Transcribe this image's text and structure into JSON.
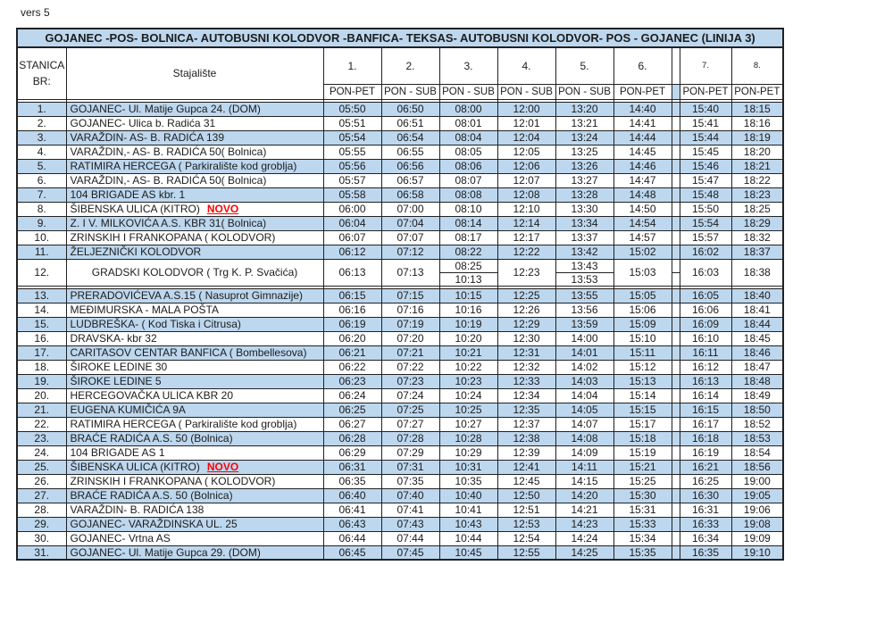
{
  "version_label": "vers 5",
  "title": "GOJANEC -POS- BOLNICA- AUTOBUSNI KOLODVOR -BANFICA- TEKSAS- AUTOBUSNI KOLODVOR- POS - GOJANEC (LINIJA 3)",
  "header": {
    "station_col_line1": "STANICA",
    "station_col_line2": "BR:",
    "stop_col": "Stajalište",
    "trips": [
      {
        "num": "1.",
        "days": "PON-PET"
      },
      {
        "num": "2.",
        "days": "PON - SUB"
      },
      {
        "num": "3.",
        "days": "PON - SUB"
      },
      {
        "num": "4.",
        "days": "PON - SUB"
      },
      {
        "num": "5.",
        "days": "PON - SUB"
      },
      {
        "num": "6.",
        "days": "PON-PET"
      },
      {
        "num": "7.",
        "days": "PON-PET"
      },
      {
        "num": "8.",
        "days": "PON-PET"
      }
    ]
  },
  "novo_label": "NOVO",
  "colors": {
    "stripe": "#bdd7ee",
    "novo": "#ff0000",
    "border": "#212121"
  },
  "rows": [
    {
      "br": "1.",
      "stop": "GOJANEC- Ul. Matije Gupca 24. (DOM)",
      "times": [
        "05:50",
        "06:50",
        "08:00",
        "12:00",
        "13:20",
        "14:40",
        "15:40",
        "18:15"
      ]
    },
    {
      "br": "2.",
      "stop": "GOJANEC- Ulica b. Radića 31",
      "times": [
        "05:51",
        "06:51",
        "08:01",
        "12:01",
        "13:21",
        "14:41",
        "15:41",
        "18:16"
      ]
    },
    {
      "br": "3.",
      "stop": "VARAŽDIN- AS- B. RADIĆA 139",
      "times": [
        "05:54",
        "06:54",
        "08:04",
        "12:04",
        "13:24",
        "14:44",
        "15:44",
        "18:19"
      ]
    },
    {
      "br": "4.",
      "stop": "VARAŽDIN,- AS- B. RADIĆA  50( Bolnica)",
      "times": [
        "05:55",
        "06:55",
        "08:05",
        "12:05",
        "13:25",
        "14:45",
        "15:45",
        "18:20"
      ]
    },
    {
      "br": "5.",
      "stop": "RATIMIRA HERCEGA ( Parkiralište kod groblja)",
      "times": [
        "05:56",
        "06:56",
        "08:06",
        "12:06",
        "13:26",
        "14:46",
        "15:46",
        "18:21"
      ]
    },
    {
      "br": "6.",
      "stop": "VARAŽDIN,- AS- B. RADIĆA  50( Bolnica)",
      "times": [
        "05:57",
        "06:57",
        "08:07",
        "12:07",
        "13:27",
        "14:47",
        "15:47",
        "18:22"
      ]
    },
    {
      "br": "7.",
      "stop": "104 BRIGADE AS kbr.  1",
      "times": [
        "05:58",
        "06:58",
        "08:08",
        "12:08",
        "13:28",
        "14:48",
        "15:48",
        "18:23"
      ]
    },
    {
      "br": "8.",
      "stop": "ŠIBENSKA ULICA  (KITRO)",
      "novo": true,
      "times": [
        "06:00",
        "07:00",
        "08:10",
        "12:10",
        "13:30",
        "14:50",
        "15:50",
        "18:25"
      ]
    },
    {
      "br": "9.",
      "stop": "Z. I V. MILKOVIĆA A.S. KBR 31( Bolnica)",
      "times": [
        "06:04",
        "07:04",
        "08:14",
        "12:14",
        "13:34",
        "14:54",
        "15:54",
        "18:29"
      ]
    },
    {
      "br": "10.",
      "stop": "ZRINSKIH I FRANKOPANA ( KOLODVOR)",
      "times": [
        "06:07",
        "07:07",
        "08:17",
        "12:17",
        "13:37",
        "14:57",
        "15:57",
        "18:32"
      ]
    },
    {
      "br": "11.",
      "stop": "ŽELJEZNIČKI KOLODVOR",
      "times": [
        "06:12",
        "07:12",
        "08:22",
        "12:22",
        "13:42",
        "15:02",
        "16:02",
        "18:37"
      ]
    },
    {
      "br": "12.",
      "stop": "GRADSKI KOLODVOR ( Trg K. P. Svačića)",
      "center": true,
      "gap_after": true,
      "times": [
        "06:13",
        "07:13",
        [
          "08:25",
          "10:13"
        ],
        "12:23",
        [
          "13:43",
          "13:53"
        ],
        "15:03",
        "16:03",
        "18:38"
      ]
    },
    {
      "br": "13.",
      "stop": "PRERADOVIĆEVA A.S.15 ( Nasuprot Gimnazije)",
      "times": [
        "06:15",
        "07:15",
        "10:15",
        "12:25",
        "13:55",
        "15:05",
        "16:05",
        "18:40"
      ]
    },
    {
      "br": "14.",
      "stop": "MEĐIMURSKA - MALA POŠTA",
      "times": [
        "06:16",
        "07:16",
        "10:16",
        "12:26",
        "13:56",
        "15:06",
        "16:06",
        "18:41"
      ]
    },
    {
      "br": "15.",
      "stop": "LUDBREŠKA- ( Kod Tiska i Citrusa)",
      "times": [
        "06:19",
        "07:19",
        "10:19",
        "12:29",
        "13:59",
        "15:09",
        "16:09",
        "18:44"
      ]
    },
    {
      "br": "16.",
      "stop": "DRAVSKA- kbr 32",
      "times": [
        "06:20",
        "07:20",
        "10:20",
        "12:30",
        "14:00",
        "15:10",
        "16:10",
        "18:45"
      ]
    },
    {
      "br": "17.",
      "stop": "CARITASOV CENTAR BANFICA ( Bombellesova)",
      "times": [
        "06:21",
        "07:21",
        "10:21",
        "12:31",
        "14:01",
        "15:11",
        "16:11",
        "18:46"
      ]
    },
    {
      "br": "18.",
      "stop": "ŠIROKE LEDINE 30",
      "times": [
        "06:22",
        "07:22",
        "10:22",
        "12:32",
        "14:02",
        "15:12",
        "16:12",
        "18:47"
      ]
    },
    {
      "br": "19.",
      "stop": "ŠIROKE LEDINE 5",
      "times": [
        "06:23",
        "07:23",
        "10:23",
        "12:33",
        "14:03",
        "15:13",
        "16:13",
        "18:48"
      ]
    },
    {
      "br": "20.",
      "stop": "HERCEGOVAČKA ULICA KBR 20",
      "times": [
        "06:24",
        "07:24",
        "10:24",
        "12:34",
        "14:04",
        "15:14",
        "16:14",
        "18:49"
      ]
    },
    {
      "br": "21.",
      "stop": "EUGENA KUMIČIĆA 9A",
      "times": [
        "06:25",
        "07:25",
        "10:25",
        "12:35",
        "14:05",
        "15:15",
        "16:15",
        "18:50"
      ]
    },
    {
      "br": "22.",
      "stop": "RATIMIRA HERCEGA ( Parkiralište kod groblja)",
      "times": [
        "06:27",
        "07:27",
        "10:27",
        "12:37",
        "14:07",
        "15:17",
        "16:17",
        "18:52"
      ]
    },
    {
      "br": "23.",
      "stop": "BRAĆE RADIĆA  A.S. 50 (Bolnica)",
      "times": [
        "06:28",
        "07:28",
        "10:28",
        "12:38",
        "14:08",
        "15:18",
        "16:18",
        "18:53"
      ]
    },
    {
      "br": "24.",
      "stop": "104 BRIGADE AS 1",
      "times": [
        "06:29",
        "07:29",
        "10:29",
        "12:39",
        "14:09",
        "15:19",
        "16:19",
        "18:54"
      ]
    },
    {
      "br": "25.",
      "stop": "ŠIBENSKA ULICA  (KITRO)",
      "novo": true,
      "times": [
        "06:31",
        "07:31",
        "10:31",
        "12:41",
        "14:11",
        "15:21",
        "16:21",
        "18:56"
      ]
    },
    {
      "br": "26.",
      "stop": "ZRINSKIH I FRANKOPANA ( KOLODVOR)",
      "times": [
        "06:35",
        "07:35",
        "10:35",
        "12:45",
        "14:15",
        "15:25",
        "16:25",
        "19:00"
      ]
    },
    {
      "br": "27.",
      "stop": "BRAĆE RADIĆA  A.S. 50 (Bolnica)",
      "times": [
        "06:40",
        "07:40",
        "10:40",
        "12:50",
        "14:20",
        "15:30",
        "16:30",
        "19:05"
      ]
    },
    {
      "br": "28.",
      "stop": "VARAŽDIN- B. RADIĆA 138",
      "times": [
        "06:41",
        "07:41",
        "10:41",
        "12:51",
        "14:21",
        "15:31",
        "16:31",
        "19:06"
      ]
    },
    {
      "br": "29.",
      "stop": "GOJANEC- VARAŽDINSKA UL. 25",
      "times": [
        "06:43",
        "07:43",
        "10:43",
        "12:53",
        "14:23",
        "15:33",
        "16:33",
        "19:08"
      ]
    },
    {
      "br": "30.",
      "stop": "GOJANEC- Vrtna AS",
      "times": [
        "06:44",
        "07:44",
        "10:44",
        "12:54",
        "14:24",
        "15:34",
        "16:34",
        "19:09"
      ]
    },
    {
      "br": "31.",
      "stop": "GOJANEC- Ul. Matije Gupca 29. (DOM)",
      "times": [
        "06:45",
        "07:45",
        "10:45",
        "12:55",
        "14:25",
        "15:35",
        "16:35",
        "19:10"
      ]
    }
  ]
}
